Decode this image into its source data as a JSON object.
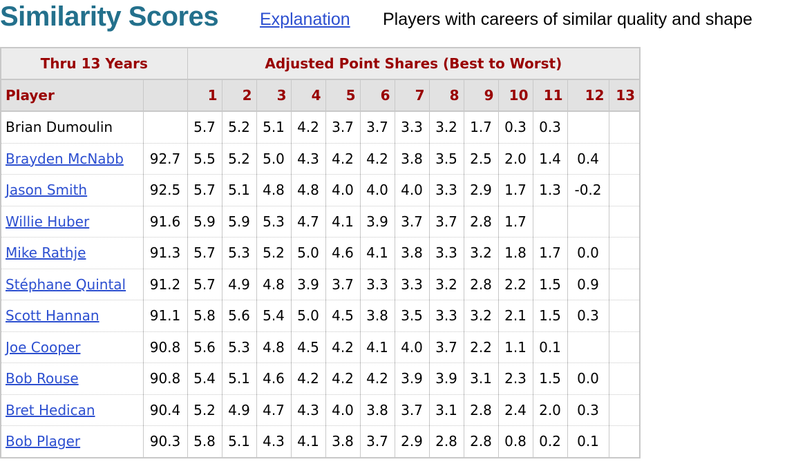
{
  "header": {
    "title": "Similarity Scores",
    "link": "Explanation",
    "description": "Players with careers of similar quality and shape"
  },
  "table": {
    "group_headers": [
      "Thru 13 Years",
      "Adjusted Point Shares (Best to Worst)"
    ],
    "columns": [
      "Player",
      1,
      2,
      3,
      4,
      5,
      6,
      7,
      8,
      9,
      10,
      11,
      12,
      13
    ],
    "rows": [
      {
        "player": "Brian Dumoulin",
        "link": false,
        "score": null,
        "shares": [
          "5.7",
          "5.2",
          "5.1",
          "4.2",
          "3.7",
          "3.7",
          "3.3",
          "3.2",
          "1.7",
          "0.3",
          "0.3",
          null,
          null
        ]
      },
      {
        "player": "Brayden McNabb",
        "link": true,
        "score": "92.7",
        "shares": [
          "5.5",
          "5.2",
          "5.0",
          "4.3",
          "4.2",
          "4.2",
          "3.8",
          "3.5",
          "2.5",
          "2.0",
          "1.4",
          "0.4",
          null
        ]
      },
      {
        "player": "Jason Smith",
        "link": true,
        "score": "92.5",
        "shares": [
          "5.7",
          "5.1",
          "4.8",
          "4.8",
          "4.0",
          "4.0",
          "4.0",
          "3.3",
          "2.9",
          "1.7",
          "1.3",
          "-0.2",
          null
        ]
      },
      {
        "player": "Willie Huber",
        "link": true,
        "score": "91.6",
        "shares": [
          "5.9",
          "5.9",
          "5.3",
          "4.7",
          "4.1",
          "3.9",
          "3.7",
          "3.7",
          "2.8",
          "1.7",
          null,
          null,
          null
        ]
      },
      {
        "player": "Mike Rathje",
        "link": true,
        "score": "91.3",
        "shares": [
          "5.7",
          "5.3",
          "5.2",
          "5.0",
          "4.6",
          "4.1",
          "3.8",
          "3.3",
          "3.2",
          "1.8",
          "1.7",
          "0.0",
          null
        ]
      },
      {
        "player": "Stéphane Quintal",
        "link": true,
        "score": "91.2",
        "shares": [
          "5.7",
          "4.9",
          "4.8",
          "3.9",
          "3.7",
          "3.3",
          "3.3",
          "3.2",
          "2.8",
          "2.2",
          "1.5",
          "0.9",
          null
        ]
      },
      {
        "player": "Scott Hannan",
        "link": true,
        "score": "91.1",
        "shares": [
          "5.8",
          "5.6",
          "5.4",
          "5.0",
          "4.5",
          "3.8",
          "3.5",
          "3.3",
          "3.2",
          "2.1",
          "1.5",
          "0.3",
          null
        ]
      },
      {
        "player": "Joe Cooper",
        "link": true,
        "score": "90.8",
        "shares": [
          "5.6",
          "5.3",
          "4.8",
          "4.5",
          "4.2",
          "4.1",
          "4.0",
          "3.7",
          "2.2",
          "1.1",
          "0.1",
          null,
          null
        ]
      },
      {
        "player": "Bob Rouse",
        "link": true,
        "score": "90.8",
        "shares": [
          "5.4",
          "5.1",
          "4.6",
          "4.2",
          "4.2",
          "4.2",
          "3.9",
          "3.9",
          "3.1",
          "2.3",
          "1.5",
          "0.0",
          null
        ]
      },
      {
        "player": "Bret Hedican",
        "link": true,
        "score": "90.4",
        "shares": [
          "5.2",
          "4.9",
          "4.7",
          "4.3",
          "4.0",
          "3.8",
          "3.7",
          "3.1",
          "2.8",
          "2.4",
          "2.0",
          "0.3",
          null
        ]
      },
      {
        "player": "Bob Plager",
        "link": true,
        "score": "90.3",
        "shares": [
          "5.8",
          "5.1",
          "4.3",
          "4.1",
          "3.8",
          "3.7",
          "2.9",
          "2.8",
          "2.8",
          "0.8",
          "0.2",
          "0.1",
          null
        ]
      }
    ]
  }
}
